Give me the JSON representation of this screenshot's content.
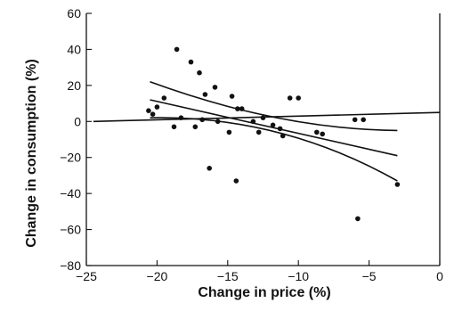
{
  "chart_data": {
    "type": "scatter",
    "title": "",
    "xlabel": "Change in price (%)",
    "ylabel": "Change in consumption (%)",
    "xlim": [
      -25,
      0
    ],
    "ylim": [
      -80,
      60
    ],
    "xticks": [
      -25,
      -20,
      -15,
      -10,
      -5,
      0
    ],
    "yticks": [
      -80,
      -60,
      -40,
      -20,
      0,
      20,
      40,
      60
    ],
    "xtick_labels": [
      "−25",
      "−20",
      "−15",
      "−10",
      "−5",
      "0"
    ],
    "ytick_labels": [
      "−80",
      "−60",
      "−40",
      "−20",
      "0",
      "20",
      "40",
      "60"
    ],
    "grid": false,
    "legend": "none",
    "points": [
      [
        -20.6,
        6
      ],
      [
        -20.3,
        4
      ],
      [
        -20.0,
        8
      ],
      [
        -19.5,
        13
      ],
      [
        -18.8,
        -3
      ],
      [
        -18.6,
        40
      ],
      [
        -18.3,
        2
      ],
      [
        -17.6,
        33
      ],
      [
        -17.3,
        -3
      ],
      [
        -17.0,
        27
      ],
      [
        -16.8,
        1
      ],
      [
        -16.6,
        15
      ],
      [
        -16.3,
        -26
      ],
      [
        -15.9,
        19
      ],
      [
        -15.7,
        0
      ],
      [
        -14.9,
        -6
      ],
      [
        -14.7,
        14
      ],
      [
        -14.4,
        -33
      ],
      [
        -14.3,
        7
      ],
      [
        -14.0,
        7
      ],
      [
        -13.2,
        0
      ],
      [
        -12.8,
        -6
      ],
      [
        -12.5,
        2
      ],
      [
        -11.8,
        -2
      ],
      [
        -11.3,
        -4
      ],
      [
        -11.1,
        -8
      ],
      [
        -10.6,
        13
      ],
      [
        -10.0,
        13
      ],
      [
        -8.7,
        -6
      ],
      [
        -8.3,
        -7
      ],
      [
        -6.0,
        1
      ],
      [
        -5.8,
        -54
      ],
      [
        -5.4,
        1
      ],
      [
        -3.0,
        -35
      ]
    ],
    "lines": [
      {
        "x": [
          -24.5,
          0
        ],
        "y": [
          0,
          5
        ]
      },
      {
        "x": [
          -20.5,
          -3.0
        ],
        "y": [
          12,
          -19
        ]
      },
      {
        "x": [
          -20.5,
          -11.5,
          -3.0
        ],
        "y": [
          22,
          2,
          -5
        ]
      },
      {
        "x": [
          -20.5,
          -11.5,
          -3.0
        ],
        "y": [
          2,
          -6,
          -33
        ]
      }
    ]
  }
}
